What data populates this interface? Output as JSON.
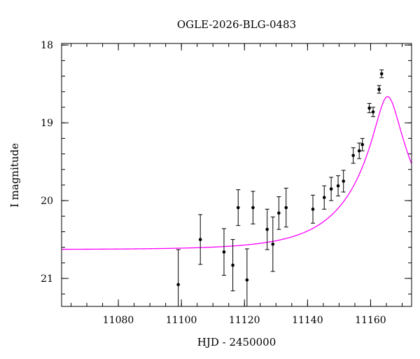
{
  "chart_data": {
    "type": "scatter",
    "title": "OGLE-2026-BLG-0483",
    "xlabel": "HJD - 2450000",
    "ylabel": "I magnitude",
    "xlim": [
      11062,
      11173
    ],
    "ylim": [
      21.36,
      17.98
    ],
    "y_inverted": true,
    "grid": false,
    "x_ticks": [
      {
        "value": 11080,
        "label": "11080"
      },
      {
        "value": 11100,
        "label": "11100"
      },
      {
        "value": 11120,
        "label": "11120"
      },
      {
        "value": 11140,
        "label": "11140"
      },
      {
        "value": 11160,
        "label": "11160"
      }
    ],
    "y_ticks": [
      {
        "value": 18,
        "label": "18"
      },
      {
        "value": 19,
        "label": "19"
      },
      {
        "value": 20,
        "label": "20"
      },
      {
        "value": 21,
        "label": "21"
      }
    ],
    "x_minor_step": 5,
    "y_minor_step": 0.2,
    "series": [
      {
        "type": "scatter_errorbar",
        "color": "#000000",
        "points": [
          {
            "x": 11099.0,
            "y": 21.08,
            "err": 0.45
          },
          {
            "x": 11106.0,
            "y": 20.5,
            "err": 0.32
          },
          {
            "x": 11113.5,
            "y": 20.66,
            "err": 0.3
          },
          {
            "x": 11116.3,
            "y": 20.83,
            "err": 0.33
          },
          {
            "x": 11118.0,
            "y": 20.09,
            "err": 0.23
          },
          {
            "x": 11120.8,
            "y": 21.02,
            "err": 0.4
          },
          {
            "x": 11122.7,
            "y": 20.09,
            "err": 0.21
          },
          {
            "x": 11127.2,
            "y": 20.37,
            "err": 0.26
          },
          {
            "x": 11129.0,
            "y": 20.56,
            "err": 0.35
          },
          {
            "x": 11130.9,
            "y": 20.16,
            "err": 0.21
          },
          {
            "x": 11133.2,
            "y": 20.09,
            "err": 0.25
          },
          {
            "x": 11141.7,
            "y": 20.11,
            "err": 0.18
          },
          {
            "x": 11145.3,
            "y": 19.96,
            "err": 0.15
          },
          {
            "x": 11147.5,
            "y": 19.85,
            "err": 0.15
          },
          {
            "x": 11149.7,
            "y": 19.81,
            "err": 0.13
          },
          {
            "x": 11151.4,
            "y": 19.75,
            "err": 0.14
          },
          {
            "x": 11154.5,
            "y": 19.42,
            "err": 0.1
          },
          {
            "x": 11156.4,
            "y": 19.36,
            "err": 0.1
          },
          {
            "x": 11157.4,
            "y": 19.28,
            "err": 0.08
          },
          {
            "x": 11159.6,
            "y": 18.81,
            "err": 0.06
          },
          {
            "x": 11160.8,
            "y": 18.86,
            "err": 0.06
          },
          {
            "x": 11162.7,
            "y": 18.57,
            "err": 0.05
          },
          {
            "x": 11163.5,
            "y": 18.37,
            "err": 0.05
          }
        ]
      },
      {
        "type": "line",
        "color": "#ff00ff",
        "model": {
          "baseline": 20.63,
          "t0": 11165.4,
          "tE": 22.1,
          "u0": 0.165
        }
      }
    ]
  }
}
